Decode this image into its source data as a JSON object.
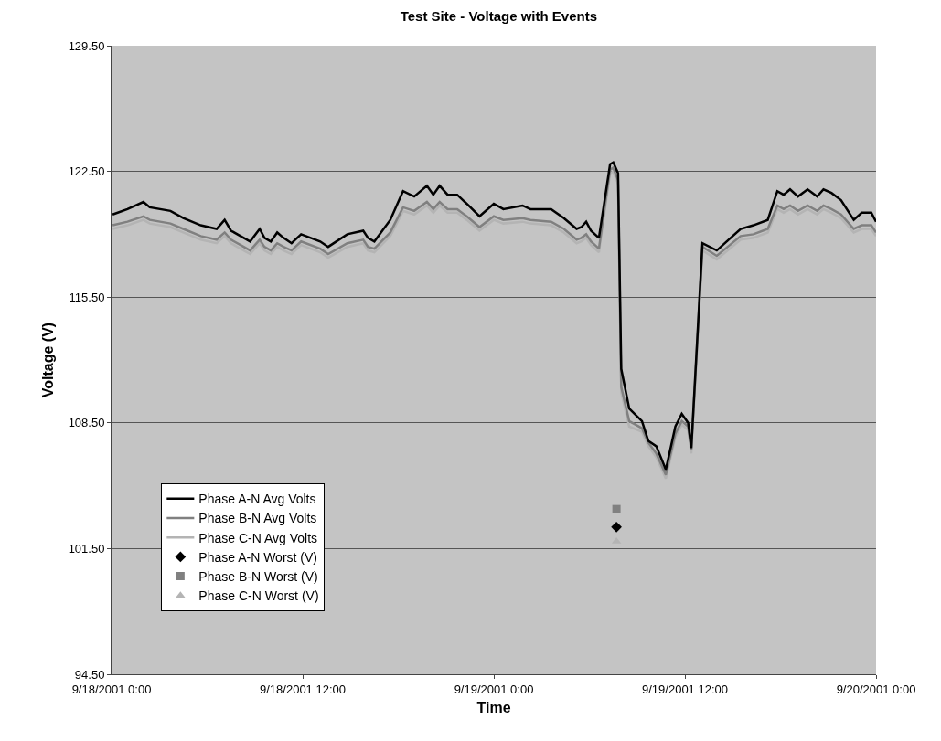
{
  "chart_data": {
    "type": "line",
    "title": "Test Site - Voltage with Events",
    "xlabel": "Time",
    "ylabel": "Voltage (V)",
    "xlim": [
      "2001-09-18T00:00",
      "2001-09-20T00:00"
    ],
    "xticks": [
      {
        "value": "2001-09-18T00:00",
        "label": "9/18/2001 0:00"
      },
      {
        "value": "2001-09-18T12:00",
        "label": "9/18/2001 12:00"
      },
      {
        "value": "2001-09-19T00:00",
        "label": "9/19/2001 0:00"
      },
      {
        "value": "2001-09-19T12:00",
        "label": "9/19/2001 12:00"
      },
      {
        "value": "2001-09-20T00:00",
        "label": "9/20/2001 0:00"
      }
    ],
    "ylim": [
      94.5,
      129.5
    ],
    "yticks": [
      {
        "value": 94.5,
        "label": "94.50"
      },
      {
        "value": 101.5,
        "label": "101.50"
      },
      {
        "value": 108.5,
        "label": "108.50"
      },
      {
        "value": 115.5,
        "label": "115.50"
      },
      {
        "value": 122.5,
        "label": "122.50"
      },
      {
        "value": 129.5,
        "label": "129.50"
      }
    ],
    "grid": "y",
    "legend": "bottom left",
    "line_style": "solid",
    "x": [
      "2001-09-18T00:04",
      "2001-09-18T01:00",
      "2001-09-18T02:00",
      "2001-09-18T02:24",
      "2001-09-18T03:42",
      "2001-09-18T04:30",
      "2001-09-18T05:36",
      "2001-09-18T06:36",
      "2001-09-18T07:06",
      "2001-09-18T07:30",
      "2001-09-18T08:18",
      "2001-09-18T08:42",
      "2001-09-18T09:18",
      "2001-09-18T09:36",
      "2001-09-18T10:00",
      "2001-09-18T10:24",
      "2001-09-18T10:48",
      "2001-09-18T11:18",
      "2001-09-18T11:54",
      "2001-09-18T13:06",
      "2001-09-18T13:36",
      "2001-09-18T14:48",
      "2001-09-18T15:48",
      "2001-09-18T16:06",
      "2001-09-18T16:30",
      "2001-09-18T17:30",
      "2001-09-18T18:18",
      "2001-09-18T19:00",
      "2001-09-18T19:48",
      "2001-09-18T20:12",
      "2001-09-18T20:36",
      "2001-09-18T21:06",
      "2001-09-18T21:42",
      "2001-09-18T22:18",
      "2001-09-18T23:06",
      "2001-09-19T00:00",
      "2001-09-19T00:36",
      "2001-09-19T01:48",
      "2001-09-19T02:18",
      "2001-09-19T03:36",
      "2001-09-19T04:24",
      "2001-09-19T05:12",
      "2001-09-19T05:30",
      "2001-09-19T05:48",
      "2001-09-19T06:06",
      "2001-09-19T06:36",
      "2001-09-19T07:18",
      "2001-09-19T07:30",
      "2001-09-19T07:48",
      "2001-09-19T08:00",
      "2001-09-19T08:30",
      "2001-09-19T09:18",
      "2001-09-19T09:42",
      "2001-09-19T10:12",
      "2001-09-19T10:48",
      "2001-09-19T11:24",
      "2001-09-19T11:48",
      "2001-09-19T12:12",
      "2001-09-19T12:24",
      "2001-09-19T13:06",
      "2001-09-19T14:00",
      "2001-09-19T15:30",
      "2001-09-19T16:18",
      "2001-09-19T17:12",
      "2001-09-19T17:48",
      "2001-09-19T18:12",
      "2001-09-19T18:36",
      "2001-09-19T19:06",
      "2001-09-19T19:42",
      "2001-09-19T20:18",
      "2001-09-19T20:42",
      "2001-09-19T21:12",
      "2001-09-19T21:48",
      "2001-09-19T22:36",
      "2001-09-19T23:06",
      "2001-09-19T23:42",
      "2001-09-20T00:00"
    ],
    "series": [
      {
        "name": "Phase A-N Avg Volts",
        "color": "#000000",
        "marker": "none",
        "values": [
          120.1,
          120.4,
          120.8,
          120.5,
          120.3,
          119.9,
          119.5,
          119.3,
          119.8,
          119.2,
          118.8,
          118.6,
          119.3,
          118.8,
          118.6,
          119.1,
          118.8,
          118.5,
          119.0,
          118.6,
          118.3,
          119.0,
          119.2,
          118.8,
          118.6,
          119.8,
          121.4,
          121.1,
          121.7,
          121.2,
          121.7,
          121.2,
          121.2,
          120.7,
          120.0,
          120.7,
          120.4,
          120.6,
          120.4,
          120.4,
          119.9,
          119.3,
          119.4,
          119.7,
          119.2,
          118.8,
          122.9,
          123.0,
          122.4,
          111.5,
          109.3,
          108.6,
          107.5,
          107.2,
          105.9,
          108.3,
          109.0,
          108.5,
          107.1,
          118.5,
          118.1,
          119.3,
          119.5,
          119.8,
          121.4,
          121.2,
          121.5,
          121.1,
          121.5,
          121.1,
          121.5,
          121.3,
          120.9,
          119.8,
          120.2,
          120.2,
          119.7
        ]
      },
      {
        "name": "Phase B-N Avg Volts",
        "color": "#808080",
        "marker": "none",
        "values": [
          119.5,
          119.7,
          120.0,
          119.8,
          119.6,
          119.3,
          118.9,
          118.7,
          119.1,
          118.7,
          118.3,
          118.1,
          118.7,
          118.3,
          118.1,
          118.5,
          118.3,
          118.1,
          118.6,
          118.2,
          117.9,
          118.5,
          118.7,
          118.3,
          118.2,
          119.1,
          120.5,
          120.3,
          120.8,
          120.4,
          120.8,
          120.4,
          120.4,
          120.0,
          119.4,
          120.0,
          119.8,
          119.9,
          119.8,
          119.7,
          119.3,
          118.7,
          118.8,
          119.0,
          118.6,
          118.2,
          122.6,
          122.7,
          122.0,
          110.5,
          108.6,
          108.2,
          107.4,
          106.8,
          105.6,
          107.9,
          108.6,
          108.3,
          107.0,
          118.3,
          117.8,
          118.9,
          119.0,
          119.3,
          120.6,
          120.4,
          120.6,
          120.3,
          120.6,
          120.3,
          120.6,
          120.4,
          120.1,
          119.3,
          119.5,
          119.5,
          119.1
        ]
      },
      {
        "name": "Phase C-N Avg Volts",
        "color": "#b4b4b4",
        "marker": "none",
        "values": [
          119.3,
          119.5,
          119.8,
          119.6,
          119.4,
          119.1,
          118.7,
          118.5,
          118.9,
          118.5,
          118.1,
          117.9,
          118.5,
          118.1,
          117.9,
          118.3,
          118.1,
          117.9,
          118.4,
          118.0,
          117.7,
          118.3,
          118.5,
          118.1,
          118.0,
          118.9,
          120.3,
          120.1,
          120.6,
          120.2,
          120.6,
          120.2,
          120.2,
          119.8,
          119.2,
          119.8,
          119.6,
          119.7,
          119.6,
          119.5,
          119.1,
          118.5,
          118.6,
          118.8,
          118.4,
          118.0,
          122.4,
          122.5,
          121.8,
          110.2,
          108.3,
          108.0,
          107.2,
          106.6,
          105.4,
          107.7,
          108.4,
          108.1,
          106.8,
          118.1,
          117.6,
          118.7,
          118.8,
          119.1,
          120.4,
          120.2,
          120.4,
          120.1,
          120.4,
          120.1,
          120.4,
          120.2,
          119.9,
          119.1,
          119.3,
          119.3,
          118.9
        ]
      },
      {
        "name": "Phase A-N Worst (V)",
        "type": "scatter",
        "marker": "diamond",
        "color": "#000000",
        "x": [
          "2001-09-19T07:42"
        ],
        "values": [
          102.7
        ]
      },
      {
        "name": "Phase B-N Worst (V)",
        "type": "scatter",
        "marker": "square",
        "color": "#808080",
        "x": [
          "2001-09-19T07:42"
        ],
        "values": [
          103.7
        ]
      },
      {
        "name": "Phase C-N Worst (V)",
        "type": "scatter",
        "marker": "triangle",
        "color": "#b4b4b4",
        "x": [
          "2001-09-19T07:42"
        ],
        "values": [
          101.9
        ]
      }
    ]
  }
}
